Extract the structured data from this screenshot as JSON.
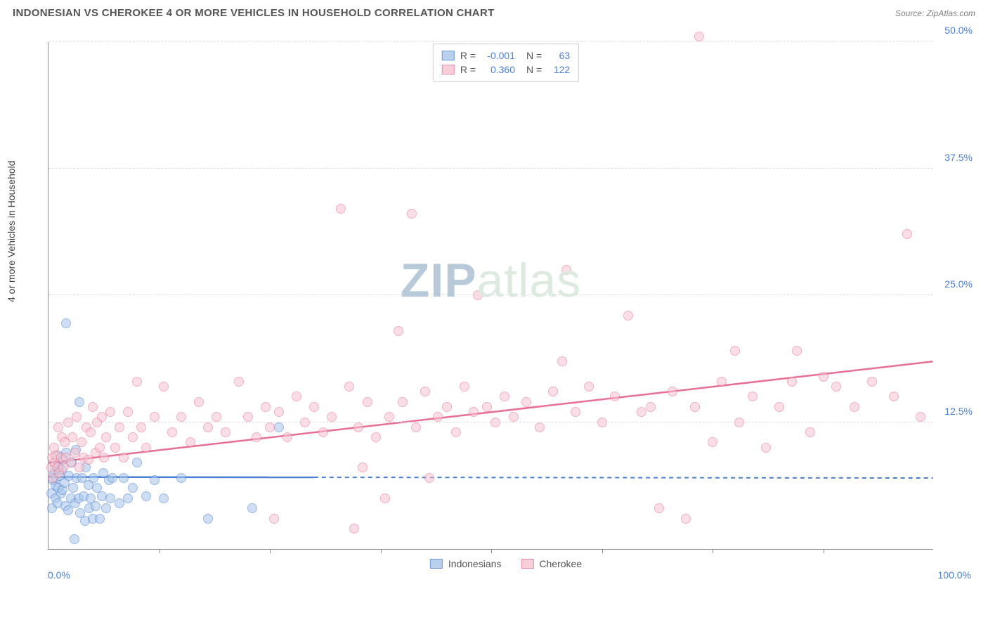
{
  "header": {
    "title": "INDONESIAN VS CHEROKEE 4 OR MORE VEHICLES IN HOUSEHOLD CORRELATION CHART",
    "source": "Source: ZipAtlas.com"
  },
  "y_axis_label": "4 or more Vehicles in Household",
  "watermark": {
    "part1": "ZIP",
    "part2": "atlas"
  },
  "chart": {
    "type": "scatter",
    "xlim": [
      0,
      100
    ],
    "ylim": [
      0,
      50
    ],
    "x_start_label": "0.0%",
    "x_end_label": "100.0%",
    "y_ticks": [
      {
        "value": 12.5,
        "label": "12.5%"
      },
      {
        "value": 25.0,
        "label": "25.0%"
      },
      {
        "value": 37.5,
        "label": "37.5%"
      },
      {
        "value": 50.0,
        "label": "50.0%"
      }
    ],
    "x_tick_values": [
      12.5,
      25,
      37.5,
      50,
      62.5,
      75,
      87.5
    ],
    "grid_color": "#dddddd",
    "background_color": "#ffffff",
    "marker_radius": 7,
    "marker_stroke_width": 1,
    "series": [
      {
        "name": "Indonesians",
        "fill": "#a9c6ea",
        "stroke": "#4a7fd4",
        "fill_opacity": 0.55,
        "R": "-0.001",
        "N": "63",
        "regression": {
          "y_start": 7.1,
          "y_end": 7.0,
          "solid_until_x": 30
        },
        "points": [
          [
            0.3,
            5.5
          ],
          [
            0.4,
            4.0
          ],
          [
            0.5,
            6.8
          ],
          [
            0.6,
            7.5
          ],
          [
            0.7,
            8.2
          ],
          [
            0.8,
            5.0
          ],
          [
            0.8,
            6.2
          ],
          [
            0.9,
            7.0
          ],
          [
            1.0,
            9.2
          ],
          [
            1.0,
            4.5
          ],
          [
            1.1,
            6.0
          ],
          [
            1.2,
            8.0
          ],
          [
            1.3,
            7.2
          ],
          [
            1.4,
            5.5
          ],
          [
            1.5,
            7.8
          ],
          [
            1.6,
            5.8
          ],
          [
            1.7,
            8.8
          ],
          [
            1.8,
            6.5
          ],
          [
            1.9,
            4.2
          ],
          [
            2.0,
            9.5
          ],
          [
            2.0,
            22.2
          ],
          [
            2.2,
            3.8
          ],
          [
            2.3,
            7.2
          ],
          [
            2.5,
            5.0
          ],
          [
            2.6,
            8.5
          ],
          [
            2.8,
            6.0
          ],
          [
            2.9,
            1.0
          ],
          [
            3.0,
            4.5
          ],
          [
            3.1,
            9.8
          ],
          [
            3.2,
            7.0
          ],
          [
            3.4,
            5.0
          ],
          [
            3.5,
            14.5
          ],
          [
            3.6,
            3.5
          ],
          [
            3.8,
            7.0
          ],
          [
            4.0,
            5.2
          ],
          [
            4.1,
            2.8
          ],
          [
            4.2,
            8.0
          ],
          [
            4.5,
            6.3
          ],
          [
            4.6,
            4.0
          ],
          [
            4.8,
            5.0
          ],
          [
            5.0,
            3.0
          ],
          [
            5.1,
            7.0
          ],
          [
            5.3,
            4.2
          ],
          [
            5.5,
            6.0
          ],
          [
            5.8,
            3.0
          ],
          [
            6.0,
            5.2
          ],
          [
            6.2,
            7.5
          ],
          [
            6.5,
            4.0
          ],
          [
            6.8,
            6.8
          ],
          [
            7.0,
            5.0
          ],
          [
            7.2,
            7.0
          ],
          [
            8.0,
            4.5
          ],
          [
            8.5,
            7.0
          ],
          [
            9.0,
            5.0
          ],
          [
            9.5,
            6.0
          ],
          [
            10.0,
            8.5
          ],
          [
            11.0,
            5.2
          ],
          [
            12.0,
            6.8
          ],
          [
            13.0,
            5.0
          ],
          [
            15.0,
            7.0
          ],
          [
            18.0,
            3.0
          ],
          [
            23.0,
            4.0
          ],
          [
            26.0,
            12.0
          ]
        ]
      },
      {
        "name": "Cherokee",
        "fill": "#f7c4d0",
        "stroke": "#e86f94",
        "fill_opacity": 0.55,
        "R": "0.360",
        "N": "122",
        "regression": {
          "y_start": 8.5,
          "y_end": 18.5,
          "solid_until_x": 100
        },
        "points": [
          [
            0.3,
            8.0
          ],
          [
            0.4,
            9.0
          ],
          [
            0.5,
            7.0
          ],
          [
            0.6,
            10.0
          ],
          [
            0.7,
            8.5
          ],
          [
            0.8,
            9.2
          ],
          [
            1.0,
            8.0
          ],
          [
            1.1,
            12.0
          ],
          [
            1.2,
            7.5
          ],
          [
            1.4,
            9.0
          ],
          [
            1.5,
            11.0
          ],
          [
            1.7,
            8.0
          ],
          [
            1.8,
            10.5
          ],
          [
            2.0,
            9.0
          ],
          [
            2.2,
            12.5
          ],
          [
            2.5,
            8.5
          ],
          [
            2.7,
            11.0
          ],
          [
            3.0,
            9.5
          ],
          [
            3.2,
            13.0
          ],
          [
            3.5,
            8.0
          ],
          [
            3.7,
            10.5
          ],
          [
            4.0,
            9.0
          ],
          [
            4.3,
            12.0
          ],
          [
            4.5,
            8.8
          ],
          [
            4.8,
            11.5
          ],
          [
            5.0,
            14.0
          ],
          [
            5.3,
            9.5
          ],
          [
            5.5,
            12.5
          ],
          [
            5.8,
            10.0
          ],
          [
            6.0,
            13.0
          ],
          [
            6.3,
            9.0
          ],
          [
            6.5,
            11.0
          ],
          [
            7.0,
            13.5
          ],
          [
            7.5,
            10.0
          ],
          [
            8.0,
            12.0
          ],
          [
            8.5,
            9.0
          ],
          [
            9.0,
            13.5
          ],
          [
            9.5,
            11.0
          ],
          [
            10.0,
            16.5
          ],
          [
            10.5,
            12.0
          ],
          [
            11.0,
            10.0
          ],
          [
            12.0,
            13.0
          ],
          [
            13.0,
            16.0
          ],
          [
            14.0,
            11.5
          ],
          [
            15.0,
            13.0
          ],
          [
            16.0,
            10.5
          ],
          [
            17.0,
            14.5
          ],
          [
            18.0,
            12.0
          ],
          [
            19.0,
            13.0
          ],
          [
            20.0,
            11.5
          ],
          [
            21.5,
            16.5
          ],
          [
            22.5,
            13.0
          ],
          [
            23.5,
            11.0
          ],
          [
            24.5,
            14.0
          ],
          [
            25.0,
            12.0
          ],
          [
            25.5,
            3.0
          ],
          [
            26.0,
            13.5
          ],
          [
            27.0,
            11.0
          ],
          [
            28.0,
            15.0
          ],
          [
            29.0,
            12.5
          ],
          [
            30.0,
            14.0
          ],
          [
            31.0,
            11.5
          ],
          [
            32.0,
            13.0
          ],
          [
            33.0,
            33.5
          ],
          [
            34.0,
            16.0
          ],
          [
            34.5,
            2.0
          ],
          [
            35.0,
            12.0
          ],
          [
            35.5,
            8.0
          ],
          [
            36.0,
            14.5
          ],
          [
            37.0,
            11.0
          ],
          [
            38.0,
            5.0
          ],
          [
            38.5,
            13.0
          ],
          [
            39.5,
            21.5
          ],
          [
            40.0,
            14.5
          ],
          [
            41.0,
            33.0
          ],
          [
            41.5,
            12.0
          ],
          [
            42.5,
            15.5
          ],
          [
            43.0,
            7.0
          ],
          [
            44.0,
            13.0
          ],
          [
            45.0,
            14.0
          ],
          [
            46.0,
            11.5
          ],
          [
            47.0,
            16.0
          ],
          [
            48.0,
            13.5
          ],
          [
            48.5,
            25.0
          ],
          [
            49.5,
            14.0
          ],
          [
            50.5,
            12.5
          ],
          [
            51.5,
            15.0
          ],
          [
            52.5,
            13.0
          ],
          [
            54.0,
            14.5
          ],
          [
            55.5,
            12.0
          ],
          [
            57.0,
            15.5
          ],
          [
            58.0,
            18.5
          ],
          [
            58.5,
            27.5
          ],
          [
            59.5,
            13.5
          ],
          [
            61.0,
            16.0
          ],
          [
            62.5,
            12.5
          ],
          [
            64.0,
            15.0
          ],
          [
            65.5,
            23.0
          ],
          [
            67.0,
            13.5
          ],
          [
            68.0,
            14.0
          ],
          [
            69.0,
            4.0
          ],
          [
            70.5,
            15.5
          ],
          [
            72.0,
            3.0
          ],
          [
            73.0,
            14.0
          ],
          [
            73.5,
            50.5
          ],
          [
            75.0,
            10.5
          ],
          [
            76.0,
            16.5
          ],
          [
            77.5,
            19.5
          ],
          [
            78.0,
            12.5
          ],
          [
            79.5,
            15.0
          ],
          [
            81.0,
            10.0
          ],
          [
            82.5,
            14.0
          ],
          [
            84.0,
            16.5
          ],
          [
            84.5,
            19.5
          ],
          [
            86.0,
            11.5
          ],
          [
            87.5,
            17.0
          ],
          [
            89.0,
            16.0
          ],
          [
            91.0,
            14.0
          ],
          [
            93.0,
            16.5
          ],
          [
            95.5,
            15.0
          ],
          [
            97.0,
            31.0
          ],
          [
            98.5,
            13.0
          ]
        ]
      }
    ]
  },
  "legend_top_labels": {
    "R": "R =",
    "N": "N ="
  }
}
